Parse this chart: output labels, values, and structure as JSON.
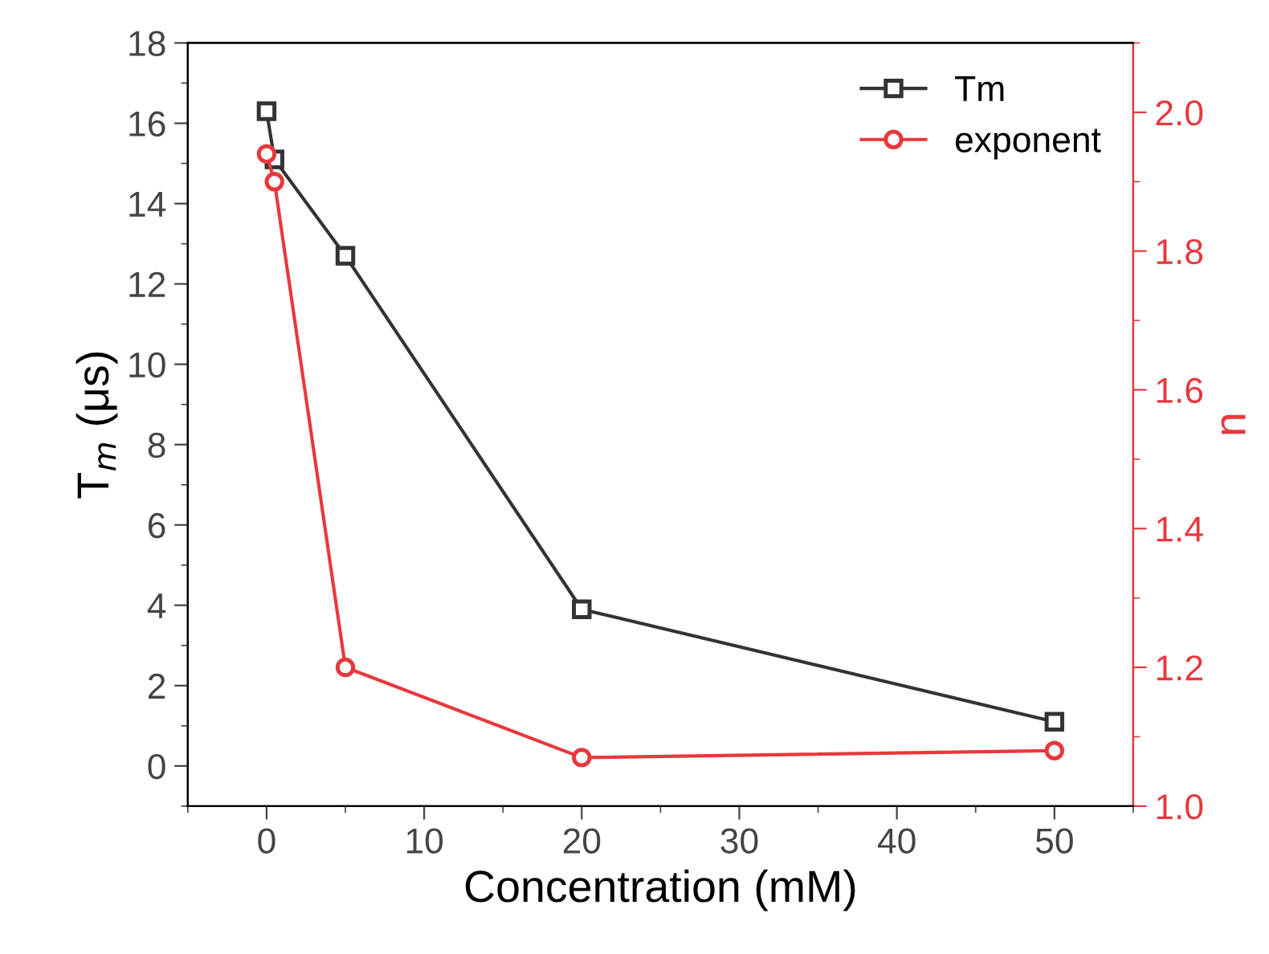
{
  "chart_data": {
    "type": "line",
    "xlabel": "Concentration (mM)",
    "ylabel": "T$_{m}$ (μs)",
    "y2label": "n",
    "xlim": [
      -5,
      55
    ],
    "xticks": [
      0,
      10,
      20,
      30,
      40,
      50
    ],
    "ylim": [
      -1,
      18
    ],
    "yticks": [
      0,
      2,
      4,
      6,
      8,
      10,
      12,
      14,
      16,
      18
    ],
    "y2lim": [
      1.0,
      2.1
    ],
    "y2ticks": [
      {
        "value": 1.0,
        "label": "1.0"
      },
      {
        "value": 1.2,
        "label": "1.2"
      },
      {
        "value": 1.4,
        "label": "1.4"
      },
      {
        "value": 1.6,
        "label": "1.6"
      },
      {
        "value": 1.8,
        "label": "1.8"
      },
      {
        "value": 2.0,
        "label": "2.0"
      }
    ],
    "series": [
      {
        "name": "Tm",
        "color": "#333333",
        "marker": "square",
        "x": [
          0,
          0.5,
          5,
          20,
          50
        ],
        "values": [
          16.3,
          15.1,
          12.7,
          3.9,
          1.1
        ]
      },
      {
        "name": "exponent",
        "color": "#e8383d",
        "marker": "circle",
        "axis": "y2",
        "x": [
          0,
          0.5,
          5,
          20,
          50
        ],
        "values": [
          1.94,
          1.9,
          1.2,
          1.07,
          1.08
        ]
      }
    ],
    "legend": "top right",
    "grid": false,
    "line_style": "solid"
  }
}
